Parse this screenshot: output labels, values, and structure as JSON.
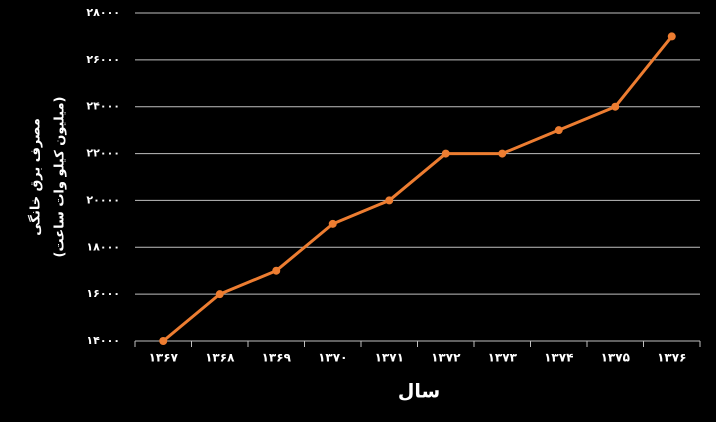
{
  "chart_data": {
    "type": "line",
    "x_label": "سال",
    "y_label": [
      "مصرف برق خانگی",
      "(میلیون کیلو وات ساعت)"
    ],
    "categories": [
      "۱۳۶۷",
      "۱۳۶۸",
      "۱۳۶۹",
      "۱۳۷۰",
      "۱۳۷۱",
      "۱۳۷۲",
      "۱۳۷۳",
      "۱۳۷۴",
      "۱۳۷۵",
      "۱۳۷۶"
    ],
    "values": [
      14000,
      16000,
      17000,
      19000,
      20000,
      22000,
      22000,
      23000,
      24000,
      27000
    ],
    "color": "#ed7d31",
    "ylim": [
      14000,
      28000
    ],
    "yticks": [
      {
        "value": 14000,
        "label": "۱۴۰۰۰"
      },
      {
        "value": 16000,
        "label": "۱۶۰۰۰"
      },
      {
        "value": 18000,
        "label": "۱۸۰۰۰"
      },
      {
        "value": 20000,
        "label": "۲۰۰۰۰"
      },
      {
        "value": 22000,
        "label": "۲۲۰۰۰"
      },
      {
        "value": 24000,
        "label": "۲۴۰۰۰"
      },
      {
        "value": 26000,
        "label": "۲۶۰۰۰"
      },
      {
        "value": 28000,
        "label": "۲۸۰۰۰"
      }
    ],
    "grid": true
  }
}
